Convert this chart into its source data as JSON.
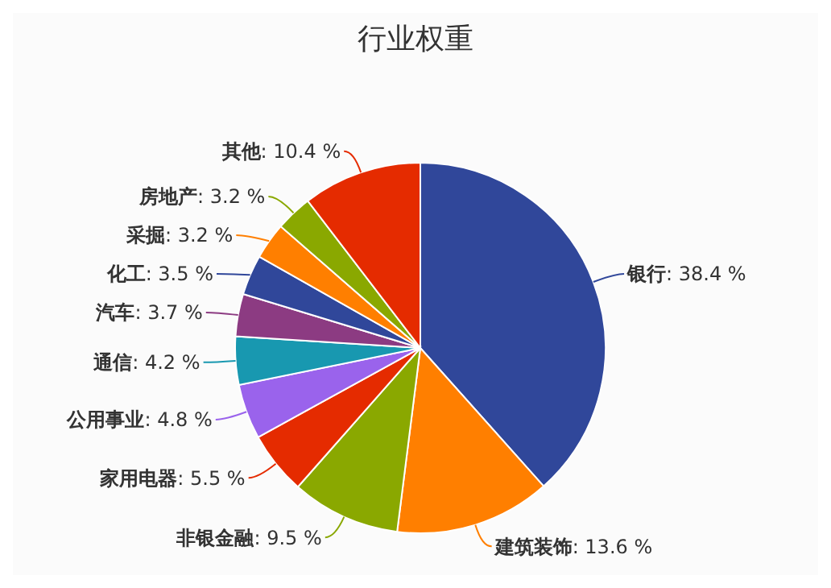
{
  "chart_data": {
    "type": "pie",
    "title": "行业权重",
    "categories": [
      "银行",
      "建筑装饰",
      "非银金融",
      "家用电器",
      "公用事业",
      "通信",
      "汽车",
      "化工",
      "采掘",
      "房地产",
      "其他"
    ],
    "values": [
      38.4,
      13.6,
      9.5,
      5.5,
      4.8,
      4.2,
      3.7,
      3.5,
      3.2,
      3.2,
      10.4
    ],
    "value_labels": [
      ": 38.4 %",
      ": 13.6 %",
      ": 9.5 %",
      ": 5.5 %",
      ": 4.8 %",
      ": 4.2 %",
      ": 3.7 %",
      ": 3.5 %",
      ": 3.2 %",
      ": 3.2 %",
      ": 10.4 %"
    ],
    "colors": [
      "#30479a",
      "#ff7f00",
      "#8aa800",
      "#e52b00",
      "#9a63ec",
      "#1898b0",
      "#8c3b82",
      "#30479a",
      "#ff7f00",
      "#8aa800",
      "#e52b00"
    ]
  }
}
